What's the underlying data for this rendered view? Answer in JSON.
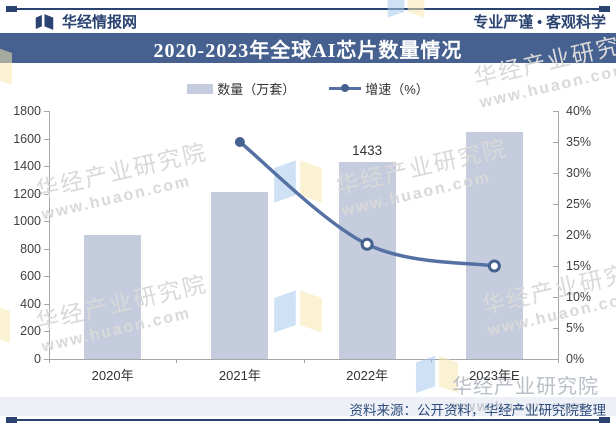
{
  "header": {
    "brand": "华经情报网",
    "slogan": "专业严谨 • 客观科学",
    "title": "2020-2023年全球AI芯片数量情况"
  },
  "legend": {
    "bar_label": "数量（万套）",
    "line_label": "增速（%）"
  },
  "chart_data": {
    "type": "bar",
    "subtype": "bar+line dual-axis combo",
    "title": "2020-2023年全球AI芯片数量情况",
    "categories": [
      "2020年",
      "2021年",
      "2022年",
      "2023年E"
    ],
    "series": [
      {
        "name": "数量（万套）",
        "type": "bar",
        "axis": "left",
        "color": "#C5CCDD",
        "values": [
          900,
          1210,
          1433,
          1650
        ]
      },
      {
        "name": "增速（%）",
        "type": "line",
        "axis": "right",
        "color": "#5571A4",
        "values": [
          null,
          35,
          18.5,
          15
        ],
        "marker_styles": [
          null,
          "solid",
          "hollow",
          "hollow"
        ]
      }
    ],
    "bar_value_labels": [
      null,
      null,
      "1433",
      null
    ],
    "left_axis": {
      "min": 0,
      "max": 1800,
      "step": 200,
      "ticks": [
        "0",
        "200",
        "400",
        "600",
        "800",
        "1000",
        "1200",
        "1400",
        "1600",
        "1800"
      ]
    },
    "right_axis": {
      "min": 0,
      "max": 40,
      "step": 5,
      "ticks": [
        "0%",
        "5%",
        "10%",
        "15%",
        "20%",
        "25%",
        "30%",
        "35%",
        "40%"
      ]
    },
    "grid": false,
    "legend_position": "top"
  },
  "footer": {
    "source": "资料来源：公开资料，华经产业研究院整理"
  },
  "watermark": {
    "name": "华经产业研究院",
    "url": "www.huaon.com"
  },
  "colors": {
    "accent_navy": "#2A4370",
    "title_bar_bg": "#46618F",
    "title_text": "#FFFFFF",
    "bar_fill": "#C5CCDD",
    "line_color": "#5571A4",
    "marker_color": "#44618F",
    "axis_line": "#A6A6A6",
    "tick_text": "#3F3F3F",
    "footer_band_bg": "#EDF0F7",
    "footer_text": "#2F4E7D",
    "watermark_gray": "#D9D9D9",
    "watermark_logo_blue": "#A9CBEE",
    "watermark_logo_yellow": "#F6E8B0"
  }
}
